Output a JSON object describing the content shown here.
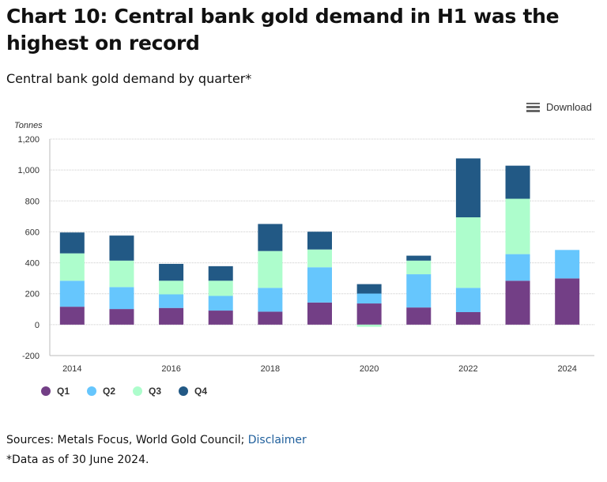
{
  "title": "Chart 10: Central bank gold demand in H1 was the highest on record",
  "subtitle": "Central bank gold demand by quarter*",
  "download_label": "Download",
  "sources_text": "Sources: Metals Focus, World Gold Council; ",
  "disclaimer_link": "Disclaimer",
  "note": "*Data as of 30 June 2024.",
  "chart_data": {
    "type": "bar",
    "stacked": true,
    "ylabel": "Tonnes",
    "ylim": [
      -200,
      1200
    ],
    "yticks": [
      -200,
      0,
      200,
      400,
      600,
      800,
      1000,
      1200
    ],
    "ytick_labels": [
      "-200",
      "0",
      "200",
      "400",
      "600",
      "800",
      "1,000",
      "1,200"
    ],
    "categories": [
      "2014",
      "2015",
      "2016",
      "2017",
      "2018",
      "2019",
      "2020",
      "2021",
      "2022",
      "2023",
      "2024"
    ],
    "xtick_labels": [
      "2014",
      "",
      "2016",
      "",
      "2018",
      "",
      "2020",
      "",
      "2022",
      "",
      "2024"
    ],
    "grid": true,
    "legend_position": "bottom-left",
    "series": [
      {
        "name": "Q1",
        "color": "#733f86",
        "values": [
          116,
          101,
          108,
          91,
          84,
          143,
          137,
          111,
          81,
          284,
          299
        ]
      },
      {
        "name": "Q2",
        "color": "#66c6fd",
        "values": [
          168,
          142,
          88,
          95,
          154,
          228,
          64,
          215,
          157,
          172,
          184
        ]
      },
      {
        "name": "Q3",
        "color": "#adfdcc",
        "values": [
          177,
          171,
          88,
          98,
          238,
          115,
          -14,
          88,
          456,
          358,
          null
        ]
      },
      {
        "name": "Q4",
        "color": "#225985",
        "values": [
          135,
          162,
          109,
          94,
          175,
          115,
          61,
          32,
          381,
          214,
          null
        ]
      }
    ]
  }
}
